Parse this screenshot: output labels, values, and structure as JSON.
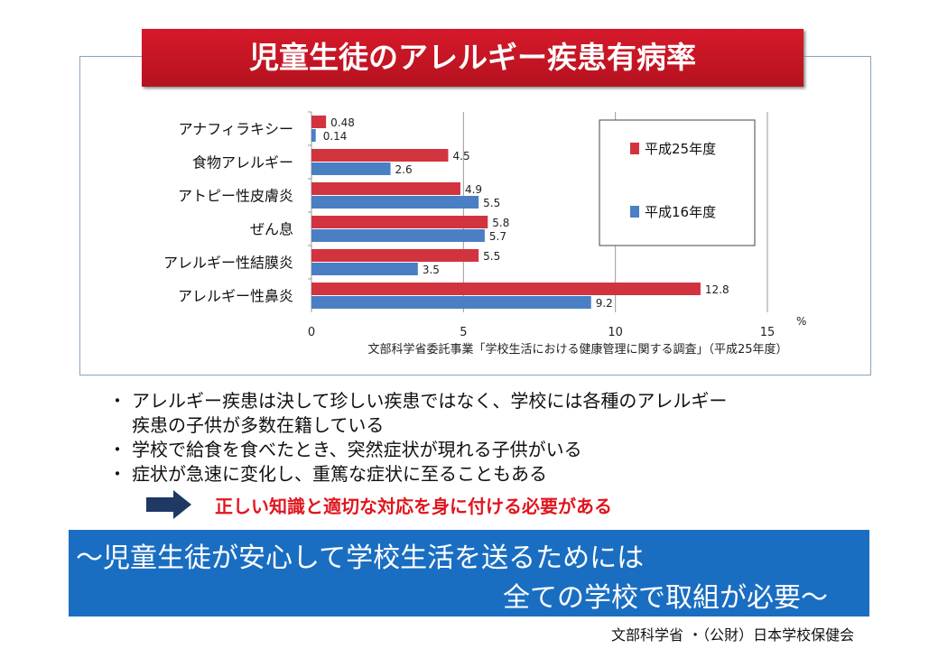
{
  "title": "児童生徒のアレルギー疾患有病率",
  "chart_data": {
    "type": "bar",
    "orientation": "horizontal",
    "categories": [
      "アナフィラキシー",
      "食物アレルギー",
      "アトピー性皮膚炎",
      "ぜん息",
      "アレルギー性結膜炎",
      "アレルギー性鼻炎"
    ],
    "series": [
      {
        "name": "平成25年度",
        "color": "#d1343f",
        "values": [
          0.48,
          4.5,
          4.9,
          5.8,
          5.5,
          12.8
        ],
        "labels": [
          "0.48",
          "4.5",
          "4.9",
          "5.8",
          "5.5",
          "12.8"
        ]
      },
      {
        "name": "平成16年度",
        "color": "#4a7fc4",
        "values": [
          0.14,
          2.6,
          5.5,
          5.7,
          3.5,
          9.2
        ],
        "labels": [
          "0.14",
          "2.6",
          "5.5",
          "5.7",
          "3.5",
          "9.2"
        ]
      }
    ],
    "xlim": [
      0,
      15
    ],
    "xticks": [
      "0",
      "5",
      "10",
      "15"
    ],
    "xunit": "%",
    "grid": true,
    "legend": "top-right",
    "source": "文部科学省委託事業「学校生活における健康管理に関する調査」（平成25年度）"
  },
  "bullets": [
    "アレルギー疾患は決して珍しい疾患ではなく、学校には各種のアレルギー",
    "疾患の子供が多数在籍している",
    "学校で給食を食べたとき、突然症状が現れる子供がいる",
    "症状が急速に変化し、重篤な症状に至ることもある"
  ],
  "bullet_mark": "・",
  "conclusion": "正しい知識と適切な対応を身に付ける必要がある",
  "banner": {
    "line1": "～児童生徒が安心して学校生活を送るためには",
    "line2": "全ての学校で取組が必要～"
  },
  "credit": "文部科学省 ・（公財）日本学校保健会"
}
